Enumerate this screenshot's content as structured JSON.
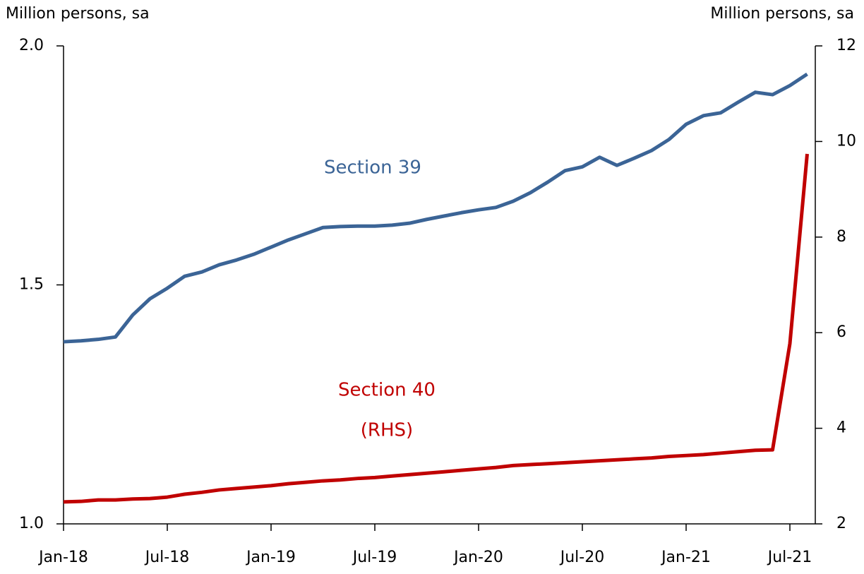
{
  "chart_data": {
    "type": "line",
    "y_label": "Million persons, sa",
    "y2_label": "Million persons, sa",
    "categories": [
      "Jan-18",
      null,
      null,
      null,
      null,
      null,
      "Jul-18",
      null,
      null,
      null,
      null,
      null,
      "Jan-19",
      null,
      null,
      null,
      null,
      null,
      "Jul-19",
      null,
      null,
      null,
      null,
      null,
      "Jan-20",
      null,
      null,
      null,
      null,
      null,
      "Jul-20",
      null,
      null,
      null,
      null,
      null,
      "Jan-21",
      null,
      null,
      null,
      null,
      null,
      "Jul-21",
      null
    ],
    "series": [
      {
        "name": "Section 39",
        "color": "#3b6496",
        "axis": "y",
        "values": [
          1.381,
          1.383,
          1.386,
          1.391,
          1.437,
          1.471,
          1.493,
          1.518,
          1.527,
          1.542,
          1.552,
          1.564,
          1.579,
          1.594,
          1.607,
          1.62,
          1.622,
          1.623,
          1.623,
          1.625,
          1.629,
          1.637,
          1.644,
          1.651,
          1.657,
          1.662,
          1.675,
          1.693,
          1.715,
          1.739,
          1.747,
          1.767,
          1.75,
          1.765,
          1.781,
          1.804,
          1.836,
          1.854,
          1.86,
          1.882,
          1.903,
          1.898,
          1.917,
          1.941
        ]
      },
      {
        "name": "Section 40",
        "color": "#c00000",
        "axis": "y2",
        "values": [
          2.46,
          2.47,
          2.5,
          2.5,
          2.52,
          2.53,
          2.56,
          2.62,
          2.66,
          2.71,
          2.74,
          2.77,
          2.8,
          2.84,
          2.87,
          2.9,
          2.92,
          2.95,
          2.97,
          3.0,
          3.03,
          3.06,
          3.09,
          3.12,
          3.15,
          3.18,
          3.22,
          3.24,
          3.26,
          3.28,
          3.3,
          3.32,
          3.34,
          3.36,
          3.38,
          3.41,
          3.43,
          3.45,
          3.48,
          3.51,
          3.54,
          3.55,
          5.77,
          9.74
        ]
      }
    ],
    "annotations": [
      "Section 39",
      "Section 40",
      "(RHS)"
    ],
    "ylim": [
      1.0,
      2.0
    ],
    "yticks": [
      {
        "value": 1.0,
        "label": "1.0"
      },
      {
        "value": 1.5,
        "label": "1.5"
      },
      {
        "value": 2.0,
        "label": "2.0"
      }
    ],
    "y2lim": [
      2,
      12
    ],
    "y2ticks": [
      2,
      4,
      6,
      8,
      10,
      12
    ],
    "grid": false
  }
}
